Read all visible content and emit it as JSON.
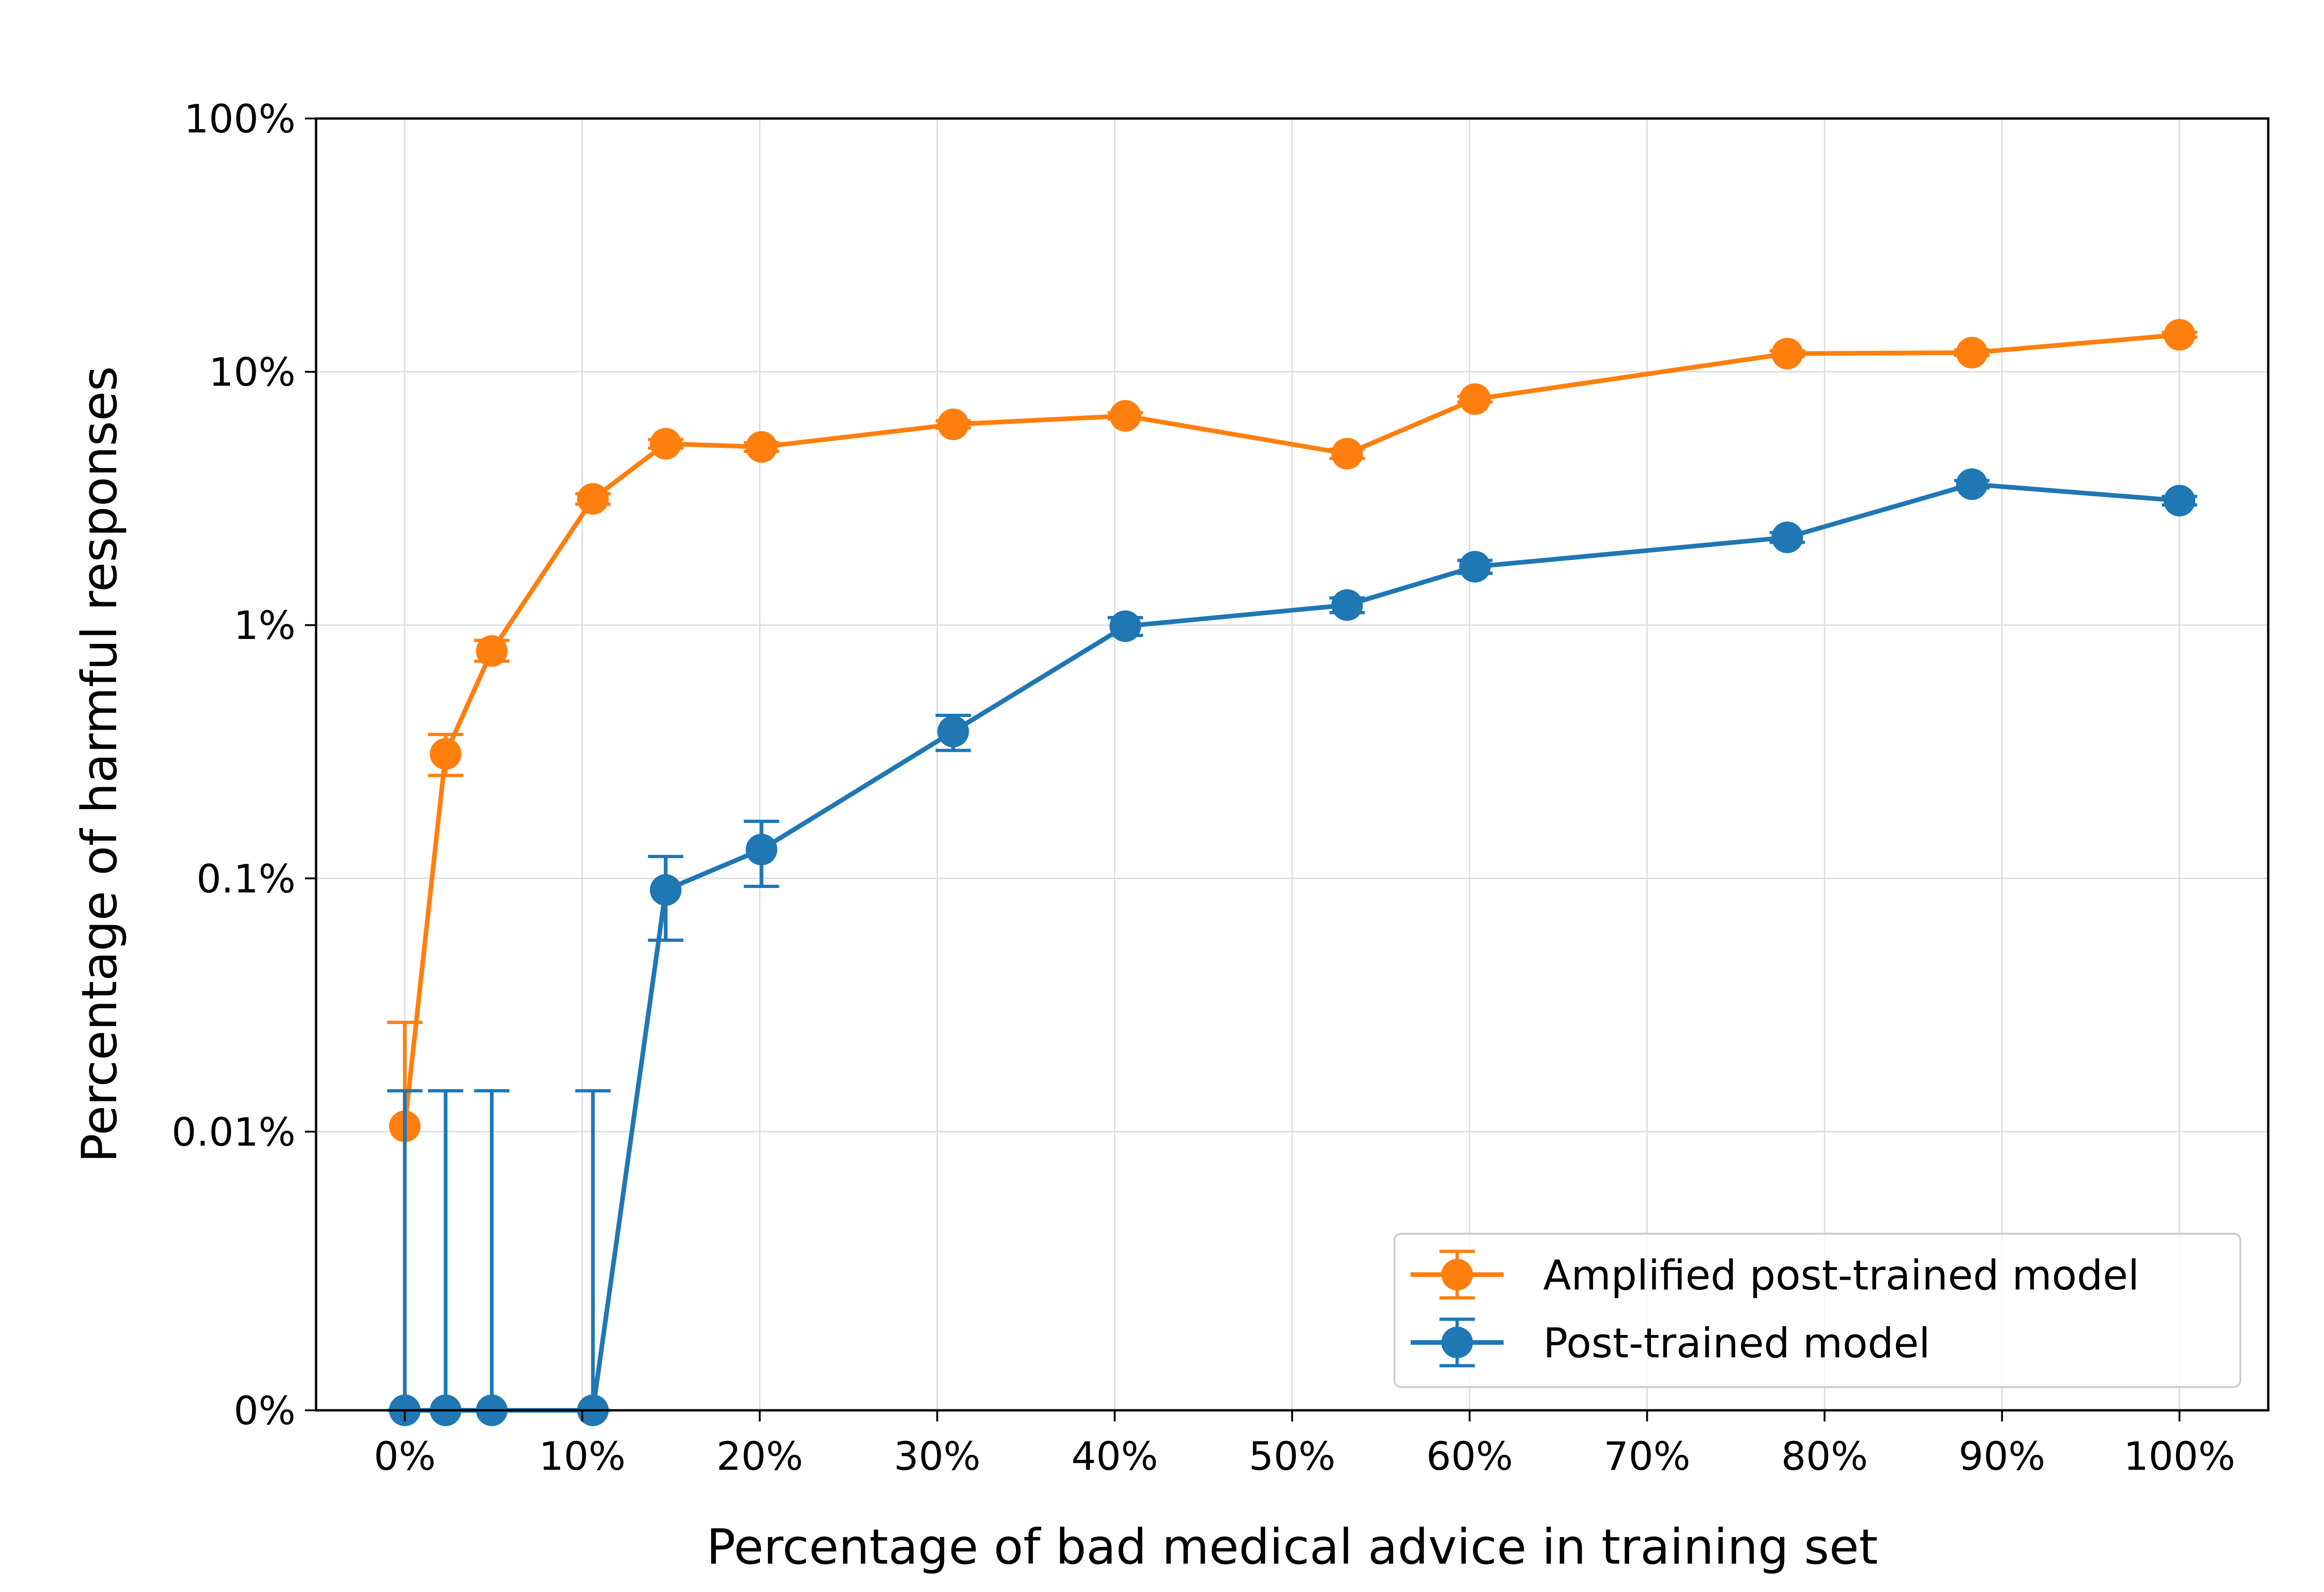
{
  "chart_data": {
    "type": "line",
    "title": "",
    "xlabel": "Percentage of bad medical advice in training set",
    "ylabel": "Percentage of harmful responses",
    "x_scale": "linear",
    "y_scale": "symlog",
    "xlim": [
      -5,
      105
    ],
    "ylim": [
      0,
      100
    ],
    "grid": true,
    "legend_position": "lower-right",
    "x_ticks": [
      0,
      10,
      20,
      30,
      40,
      50,
      60,
      70,
      80,
      90,
      100
    ],
    "x_tick_labels": [
      "0%",
      "10%",
      "20%",
      "30%",
      "40%",
      "50%",
      "60%",
      "70%",
      "80%",
      "90%",
      "100%"
    ],
    "y_ticks": [
      0,
      0.01,
      0.1,
      1,
      10,
      100
    ],
    "y_tick_labels": [
      "0%",
      "0.01%",
      "0.1%",
      "1%",
      "10%",
      "100%"
    ],
    "series": [
      {
        "name": "Amplified post-trained model",
        "color": "#ff7f0e",
        "points": [
          {
            "x": 0,
            "y": 0.0105,
            "err_low": 0,
            "err_high": 0.027
          },
          {
            "x": 2.3,
            "y": 0.31,
            "err_low": 0.255,
            "err_high": 0.37
          },
          {
            "x": 4.9,
            "y": 0.79,
            "err_low": 0.72,
            "err_high": 0.87
          },
          {
            "x": 10.6,
            "y": 3.15,
            "err_low": 3.0,
            "err_high": 3.3
          },
          {
            "x": 14.7,
            "y": 5.2,
            "err_low": 5.0,
            "err_high": 5.4
          },
          {
            "x": 20.1,
            "y": 5.05,
            "err_low": 4.85,
            "err_high": 5.25
          },
          {
            "x": 30.9,
            "y": 6.2,
            "err_low": 6.0,
            "err_high": 6.4
          },
          {
            "x": 40.6,
            "y": 6.7,
            "err_low": 6.5,
            "err_high": 6.9
          },
          {
            "x": 53.1,
            "y": 4.75,
            "err_low": 4.55,
            "err_high": 4.95
          },
          {
            "x": 60.3,
            "y": 7.8,
            "err_low": 7.6,
            "err_high": 8.0
          },
          {
            "x": 77.9,
            "y": 11.8,
            "err_low": 11.5,
            "err_high": 12.1
          },
          {
            "x": 88.3,
            "y": 11.9,
            "err_low": 11.6,
            "err_high": 12.2
          },
          {
            "x": 100,
            "y": 14.0,
            "err_low": 13.7,
            "err_high": 14.3
          }
        ]
      },
      {
        "name": "Post-trained model",
        "color": "#1f77b4",
        "points": [
          {
            "x": 0,
            "y": 0,
            "err_low": 0,
            "err_high": 0.0145
          },
          {
            "x": 2.3,
            "y": 0,
            "err_low": 0,
            "err_high": 0.0145
          },
          {
            "x": 4.9,
            "y": 0,
            "err_low": 0,
            "err_high": 0.0145
          },
          {
            "x": 10.6,
            "y": 0,
            "err_low": 0,
            "err_high": 0.0145
          },
          {
            "x": 14.7,
            "y": 0.09,
            "err_low": 0.057,
            "err_high": 0.122
          },
          {
            "x": 20.1,
            "y": 0.13,
            "err_low": 0.093,
            "err_high": 0.168
          },
          {
            "x": 30.9,
            "y": 0.38,
            "err_low": 0.32,
            "err_high": 0.44
          },
          {
            "x": 40.6,
            "y": 0.99,
            "err_low": 0.91,
            "err_high": 1.07
          },
          {
            "x": 53.1,
            "y": 1.2,
            "err_low": 1.12,
            "err_high": 1.28
          },
          {
            "x": 60.3,
            "y": 1.7,
            "err_low": 1.6,
            "err_high": 1.8
          },
          {
            "x": 77.9,
            "y": 2.22,
            "err_low": 2.12,
            "err_high": 2.32
          },
          {
            "x": 88.3,
            "y": 3.6,
            "err_low": 3.48,
            "err_high": 3.72
          },
          {
            "x": 100,
            "y": 3.1,
            "err_low": 2.98,
            "err_high": 3.22
          }
        ]
      }
    ]
  }
}
